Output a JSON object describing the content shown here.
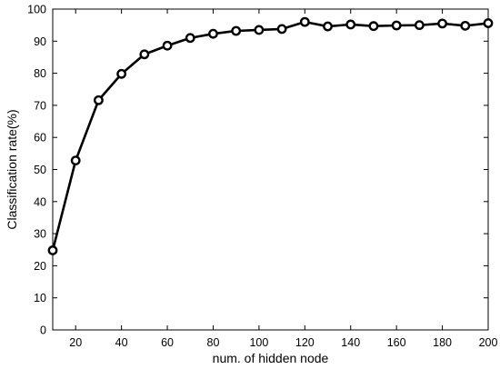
{
  "chart_data": {
    "type": "line",
    "xlabel": "num. of hidden node",
    "ylabel": "Classification rate(%)",
    "xlim": [
      10,
      200
    ],
    "ylim": [
      0,
      100
    ],
    "xticks": [
      20,
      40,
      60,
      80,
      100,
      120,
      140,
      160,
      180,
      200
    ],
    "yticks": [
      0,
      10,
      20,
      30,
      40,
      50,
      60,
      70,
      80,
      90,
      100
    ],
    "grid": false,
    "marker": "circle",
    "line_color": "#000000",
    "series": [
      {
        "x": [
          10,
          20,
          30,
          40,
          50,
          60,
          70,
          80,
          90,
          100,
          110,
          120,
          130,
          140,
          150,
          160,
          170,
          180,
          190,
          200
        ],
        "values": [
          24.8,
          52.8,
          71.6,
          79.8,
          85.9,
          88.6,
          91.0,
          92.3,
          93.2,
          93.5,
          93.8,
          96.0,
          94.6,
          95.2,
          94.7,
          94.9,
          95.0,
          95.5,
          94.8,
          95.6
        ]
      }
    ]
  }
}
